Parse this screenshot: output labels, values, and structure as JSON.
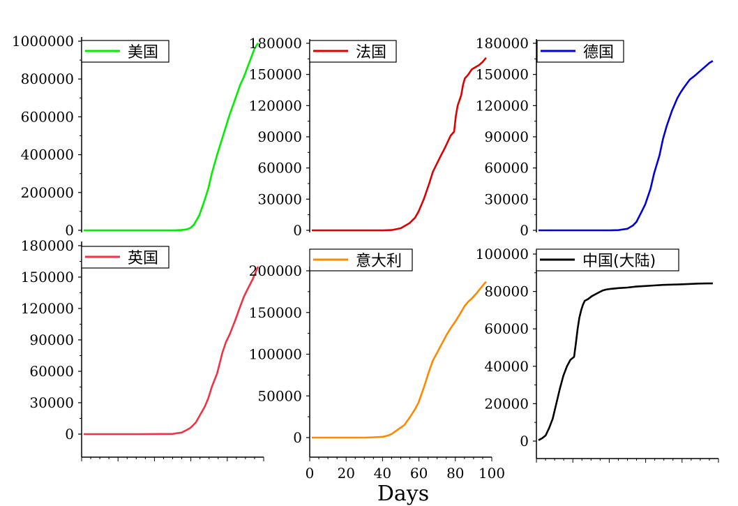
{
  "figure": {
    "xlabel": "Days"
  },
  "chart_data": [
    {
      "type": "line",
      "legend": "美国",
      "color": "#00ee00",
      "ylim": [
        0,
        1000000
      ],
      "yticks": [
        0,
        200000,
        400000,
        600000,
        800000,
        1000000
      ],
      "xlim": [
        0,
        100
      ],
      "x": [
        0,
        50,
        52,
        55,
        58,
        60,
        62,
        65,
        68,
        70,
        72,
        75,
        78,
        80,
        82,
        85,
        88,
        90,
        92,
        94,
        96,
        98
      ],
      "y": [
        0,
        0,
        500,
        1500,
        5000,
        13000,
        30000,
        80000,
        160000,
        220000,
        300000,
        400000,
        490000,
        550000,
        610000,
        690000,
        770000,
        810000,
        860000,
        910000,
        960000,
        990000
      ]
    },
    {
      "type": "line",
      "legend": "法国",
      "color": "#dd0000",
      "ylim": [
        0,
        180000
      ],
      "yticks": [
        0,
        30000,
        60000,
        90000,
        120000,
        150000,
        180000
      ],
      "xlim": [
        0,
        100
      ],
      "x": [
        0,
        40,
        45,
        50,
        55,
        58,
        60,
        63,
        66,
        68,
        70,
        72,
        75,
        78,
        80,
        81,
        82,
        84,
        85,
        86,
        88,
        90,
        92,
        94,
        96,
        98
      ],
      "y": [
        0,
        0,
        300,
        2000,
        7000,
        12000,
        18000,
        30000,
        45000,
        56000,
        63000,
        70000,
        80000,
        91000,
        95000,
        110000,
        120000,
        130000,
        140000,
        146000,
        150000,
        155000,
        157000,
        159000,
        162000,
        166000
      ]
    },
    {
      "type": "line",
      "legend": "德国",
      "color": "#0000dd",
      "ylim": [
        0,
        180000
      ],
      "yticks": [
        0,
        30000,
        60000,
        90000,
        120000,
        150000,
        180000
      ],
      "xlim": [
        0,
        100
      ],
      "x": [
        0,
        40,
        45,
        50,
        53,
        55,
        58,
        60,
        63,
        65,
        68,
        70,
        72,
        75,
        78,
        80,
        82,
        85,
        88,
        90,
        92,
        94,
        96,
        98
      ],
      "y": [
        0,
        0,
        200,
        1500,
        4500,
        8000,
        18000,
        25000,
        40000,
        55000,
        72000,
        88000,
        100000,
        115000,
        127000,
        133000,
        138000,
        145000,
        149000,
        152000,
        155000,
        158000,
        161000,
        163000
      ]
    },
    {
      "type": "line",
      "legend": "英国",
      "color": "#ee3344",
      "ylim": [
        0,
        180000
      ],
      "yticks": [
        0,
        30000,
        60000,
        90000,
        120000,
        150000,
        180000
      ],
      "xlim": [
        0,
        100
      ],
      "x": [
        0,
        30,
        50,
        55,
        58,
        60,
        63,
        66,
        68,
        70,
        72,
        75,
        78,
        80,
        82,
        85,
        88,
        90,
        92,
        95,
        98
      ],
      "y": [
        0,
        0,
        200,
        1500,
        4000,
        6000,
        11000,
        20000,
        26000,
        34000,
        45000,
        58000,
        78000,
        88000,
        95000,
        108000,
        122000,
        131000,
        138000,
        148000,
        160000
      ]
    },
    {
      "type": "line",
      "legend": "意大利",
      "color": "#ff8800",
      "ylim": [
        0,
        200000
      ],
      "yticks": [
        0,
        50000,
        100000,
        150000,
        200000
      ],
      "xlim": [
        0,
        100
      ],
      "x": [
        0,
        30,
        35,
        40,
        43,
        45,
        48,
        50,
        52,
        55,
        58,
        60,
        63,
        66,
        68,
        70,
        73,
        76,
        78,
        80,
        83,
        86,
        88,
        90,
        93,
        96,
        98
      ],
      "y": [
        0,
        0,
        400,
        1000,
        2500,
        4500,
        9000,
        12000,
        15000,
        24000,
        34000,
        42000,
        60000,
        80000,
        92000,
        100000,
        112000,
        124000,
        131000,
        137000,
        147000,
        158000,
        163000,
        167000,
        174000,
        182000,
        187000
      ]
    },
    {
      "type": "line",
      "legend": "中国(大陆)",
      "color": "#000000",
      "ylim": [
        0,
        100000
      ],
      "yticks": [
        0,
        20000,
        40000,
        60000,
        80000,
        100000
      ],
      "xlim": [
        0,
        100
      ],
      "x": [
        0,
        2,
        4,
        6,
        8,
        10,
        12,
        14,
        16,
        18,
        20,
        21,
        22,
        23,
        24,
        25,
        26,
        28,
        30,
        32,
        34,
        36,
        38,
        40,
        42,
        45,
        50,
        55,
        60,
        65,
        70,
        80,
        90,
        95,
        98
      ],
      "y": [
        500,
        1500,
        3000,
        7000,
        12000,
        20000,
        28000,
        35000,
        40000,
        43500,
        45000,
        52000,
        60000,
        66000,
        70000,
        73000,
        75000,
        76000,
        77500,
        78500,
        79500,
        80500,
        81000,
        81300,
        81500,
        81800,
        82100,
        82600,
        82900,
        83200,
        83500,
        83800,
        84200,
        84300,
        84300
      ]
    }
  ],
  "x_axis_ticks": [
    0,
    20,
    40,
    60,
    80,
    100
  ]
}
